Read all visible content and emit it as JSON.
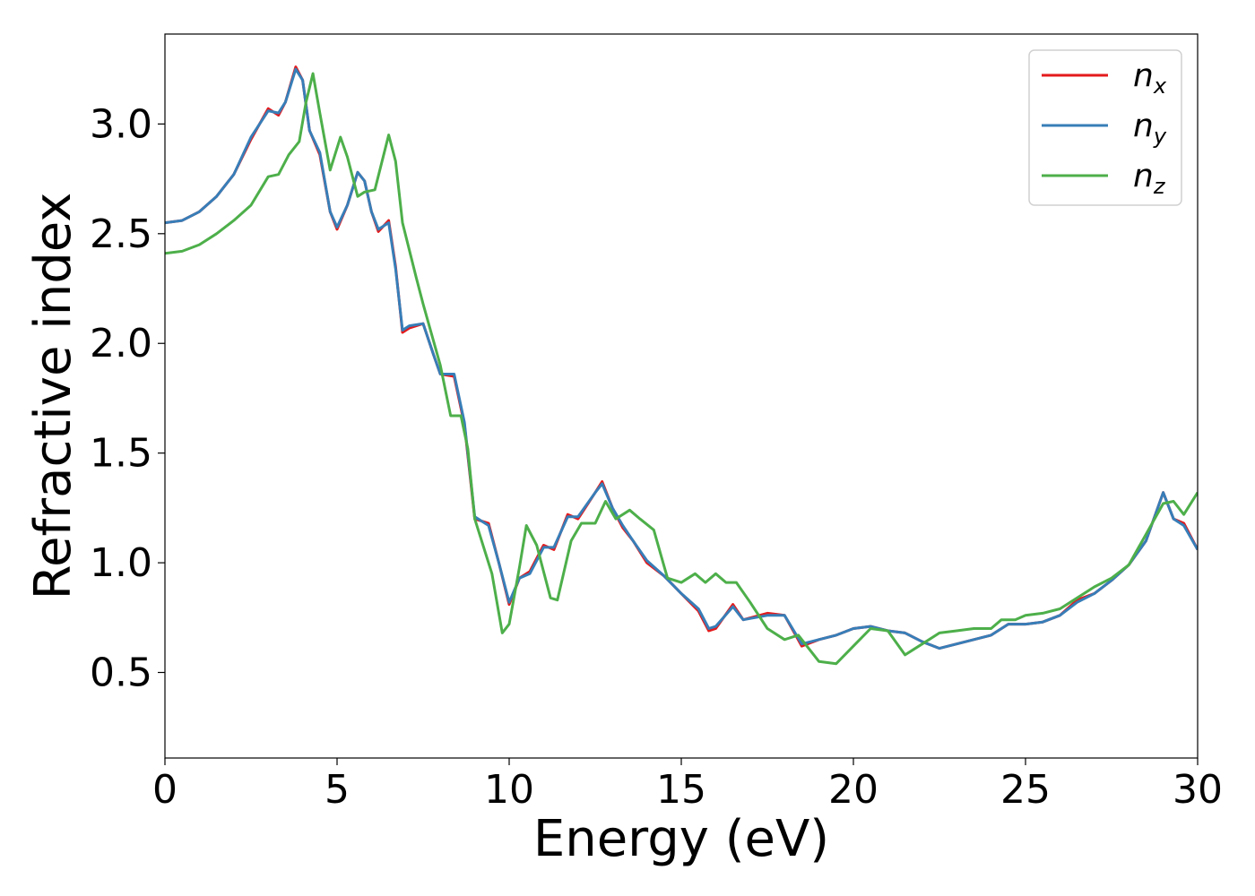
{
  "chart_data": {
    "type": "line",
    "title": "",
    "xlabel": "Energy (eV)",
    "ylabel": "Refractive index",
    "xlim": [
      0,
      30
    ],
    "ylim": [
      0.11,
      3.41
    ],
    "xticks": [
      0,
      5,
      10,
      15,
      20,
      25,
      30
    ],
    "xtick_labels": [
      "0",
      "5",
      "10",
      "15",
      "20",
      "25",
      "30"
    ],
    "yticks": [
      0.5,
      1.0,
      1.5,
      2.0,
      2.5,
      3.0
    ],
    "ytick_labels": [
      "0.5",
      "1.0",
      "1.5",
      "2.0",
      "2.5",
      "3.0"
    ],
    "grid": false,
    "legend_position": "top-right",
    "series": [
      {
        "name": "n",
        "sub": "x",
        "color": "#e41a1c",
        "points": [
          [
            0,
            2.55
          ],
          [
            0.5,
            2.56
          ],
          [
            1,
            2.6
          ],
          [
            1.5,
            2.67
          ],
          [
            2,
            2.77
          ],
          [
            2.5,
            2.93
          ],
          [
            3,
            3.07
          ],
          [
            3.3,
            3.04
          ],
          [
            3.5,
            3.1
          ],
          [
            3.8,
            3.26
          ],
          [
            4,
            3.2
          ],
          [
            4.2,
            2.97
          ],
          [
            4.5,
            2.86
          ],
          [
            4.8,
            2.6
          ],
          [
            5,
            2.52
          ],
          [
            5.3,
            2.63
          ],
          [
            5.6,
            2.78
          ],
          [
            5.8,
            2.74
          ],
          [
            6,
            2.6
          ],
          [
            6.2,
            2.51
          ],
          [
            6.5,
            2.56
          ],
          [
            6.7,
            2.35
          ],
          [
            6.9,
            2.05
          ],
          [
            7.1,
            2.07
          ],
          [
            7.5,
            2.09
          ],
          [
            7.8,
            1.95
          ],
          [
            8,
            1.86
          ],
          [
            8.4,
            1.85
          ],
          [
            8.7,
            1.63
          ],
          [
            9,
            1.2
          ],
          [
            9.2,
            1.19
          ],
          [
            9.4,
            1.18
          ],
          [
            9.7,
            1.0
          ],
          [
            10,
            0.81
          ],
          [
            10.3,
            0.93
          ],
          [
            10.6,
            0.96
          ],
          [
            11,
            1.08
          ],
          [
            11.3,
            1.06
          ],
          [
            11.7,
            1.22
          ],
          [
            12,
            1.2
          ],
          [
            12.5,
            1.32
          ],
          [
            12.7,
            1.37
          ],
          [
            13,
            1.25
          ],
          [
            13.3,
            1.16
          ],
          [
            13.6,
            1.1
          ],
          [
            14,
            1.0
          ],
          [
            14.5,
            0.94
          ],
          [
            15,
            0.86
          ],
          [
            15.5,
            0.78
          ],
          [
            15.8,
            0.69
          ],
          [
            16,
            0.7
          ],
          [
            16.5,
            0.81
          ],
          [
            16.8,
            0.74
          ],
          [
            17.5,
            0.77
          ],
          [
            18,
            0.76
          ],
          [
            18.5,
            0.62
          ],
          [
            19,
            0.65
          ],
          [
            19.5,
            0.67
          ],
          [
            20,
            0.7
          ],
          [
            20.5,
            0.71
          ],
          [
            21,
            0.69
          ],
          [
            21.5,
            0.68
          ],
          [
            22,
            0.64
          ],
          [
            22.5,
            0.61
          ],
          [
            23,
            0.63
          ],
          [
            23.5,
            0.65
          ],
          [
            24,
            0.67
          ],
          [
            24.5,
            0.72
          ],
          [
            25,
            0.72
          ],
          [
            25.5,
            0.73
          ],
          [
            26,
            0.76
          ],
          [
            26.5,
            0.83
          ],
          [
            27,
            0.86
          ],
          [
            27.5,
            0.92
          ],
          [
            28,
            0.99
          ],
          [
            28.5,
            1.1
          ],
          [
            29,
            1.32
          ],
          [
            29.3,
            1.2
          ],
          [
            29.6,
            1.18
          ],
          [
            30,
            1.06
          ]
        ]
      },
      {
        "name": "n",
        "sub": "y",
        "color": "#377eb8",
        "points": [
          [
            0,
            2.55
          ],
          [
            0.5,
            2.56
          ],
          [
            1,
            2.6
          ],
          [
            1.5,
            2.67
          ],
          [
            2,
            2.77
          ],
          [
            2.5,
            2.94
          ],
          [
            3,
            3.06
          ],
          [
            3.3,
            3.05
          ],
          [
            3.5,
            3.1
          ],
          [
            3.8,
            3.25
          ],
          [
            4,
            3.2
          ],
          [
            4.2,
            2.97
          ],
          [
            4.5,
            2.87
          ],
          [
            4.8,
            2.6
          ],
          [
            5,
            2.53
          ],
          [
            5.3,
            2.63
          ],
          [
            5.6,
            2.78
          ],
          [
            5.8,
            2.74
          ],
          [
            6,
            2.6
          ],
          [
            6.2,
            2.52
          ],
          [
            6.5,
            2.55
          ],
          [
            6.7,
            2.34
          ],
          [
            6.9,
            2.06
          ],
          [
            7.1,
            2.08
          ],
          [
            7.5,
            2.09
          ],
          [
            7.8,
            1.95
          ],
          [
            8,
            1.86
          ],
          [
            8.4,
            1.86
          ],
          [
            8.7,
            1.64
          ],
          [
            9,
            1.21
          ],
          [
            9.2,
            1.19
          ],
          [
            9.4,
            1.17
          ],
          [
            9.7,
            1.0
          ],
          [
            10,
            0.82
          ],
          [
            10.3,
            0.93
          ],
          [
            10.6,
            0.95
          ],
          [
            11,
            1.07
          ],
          [
            11.3,
            1.07
          ],
          [
            11.7,
            1.21
          ],
          [
            12,
            1.21
          ],
          [
            12.5,
            1.32
          ],
          [
            12.7,
            1.36
          ],
          [
            13,
            1.25
          ],
          [
            13.3,
            1.17
          ],
          [
            13.6,
            1.1
          ],
          [
            14,
            1.01
          ],
          [
            14.5,
            0.94
          ],
          [
            15,
            0.86
          ],
          [
            15.5,
            0.79
          ],
          [
            15.8,
            0.7
          ],
          [
            16,
            0.71
          ],
          [
            16.5,
            0.8
          ],
          [
            16.8,
            0.74
          ],
          [
            17.5,
            0.76
          ],
          [
            18,
            0.76
          ],
          [
            18.5,
            0.63
          ],
          [
            19,
            0.65
          ],
          [
            19.5,
            0.67
          ],
          [
            20,
            0.7
          ],
          [
            20.5,
            0.71
          ],
          [
            21,
            0.69
          ],
          [
            21.5,
            0.68
          ],
          [
            22,
            0.64
          ],
          [
            22.5,
            0.61
          ],
          [
            23,
            0.63
          ],
          [
            23.5,
            0.65
          ],
          [
            24,
            0.67
          ],
          [
            24.5,
            0.72
          ],
          [
            25,
            0.72
          ],
          [
            25.5,
            0.73
          ],
          [
            26,
            0.76
          ],
          [
            26.5,
            0.82
          ],
          [
            27,
            0.86
          ],
          [
            27.5,
            0.92
          ],
          [
            28,
            0.99
          ],
          [
            28.5,
            1.1
          ],
          [
            29,
            1.32
          ],
          [
            29.3,
            1.2
          ],
          [
            29.6,
            1.17
          ],
          [
            30,
            1.06
          ]
        ]
      },
      {
        "name": "n",
        "sub": "z",
        "color": "#4daf4a",
        "points": [
          [
            0,
            2.41
          ],
          [
            0.5,
            2.42
          ],
          [
            1,
            2.45
          ],
          [
            1.5,
            2.5
          ],
          [
            2,
            2.56
          ],
          [
            2.5,
            2.63
          ],
          [
            3,
            2.76
          ],
          [
            3.3,
            2.77
          ],
          [
            3.6,
            2.86
          ],
          [
            3.9,
            2.92
          ],
          [
            4.1,
            3.1
          ],
          [
            4.3,
            3.23
          ],
          [
            4.5,
            3.05
          ],
          [
            4.8,
            2.79
          ],
          [
            5.1,
            2.94
          ],
          [
            5.3,
            2.85
          ],
          [
            5.6,
            2.67
          ],
          [
            5.8,
            2.69
          ],
          [
            6.1,
            2.7
          ],
          [
            6.5,
            2.95
          ],
          [
            6.7,
            2.83
          ],
          [
            6.9,
            2.55
          ],
          [
            7.3,
            2.3
          ],
          [
            7.5,
            2.18
          ],
          [
            8,
            1.9
          ],
          [
            8.3,
            1.67
          ],
          [
            8.6,
            1.67
          ],
          [
            8.8,
            1.52
          ],
          [
            9,
            1.2
          ],
          [
            9.5,
            0.95
          ],
          [
            9.8,
            0.68
          ],
          [
            10,
            0.72
          ],
          [
            10.3,
            0.98
          ],
          [
            10.5,
            1.17
          ],
          [
            10.8,
            1.08
          ],
          [
            11.2,
            0.84
          ],
          [
            11.4,
            0.83
          ],
          [
            11.8,
            1.1
          ],
          [
            12.1,
            1.18
          ],
          [
            12.5,
            1.18
          ],
          [
            12.8,
            1.28
          ],
          [
            13.1,
            1.2
          ],
          [
            13.5,
            1.24
          ],
          [
            13.8,
            1.2
          ],
          [
            14.2,
            1.15
          ],
          [
            14.6,
            0.93
          ],
          [
            15,
            0.91
          ],
          [
            15.4,
            0.95
          ],
          [
            15.7,
            0.91
          ],
          [
            16,
            0.95
          ],
          [
            16.3,
            0.91
          ],
          [
            16.6,
            0.91
          ],
          [
            17,
            0.82
          ],
          [
            17.5,
            0.7
          ],
          [
            18,
            0.65
          ],
          [
            18.4,
            0.67
          ],
          [
            19,
            0.55
          ],
          [
            19.5,
            0.54
          ],
          [
            20,
            0.62
          ],
          [
            20.5,
            0.7
          ],
          [
            21,
            0.69
          ],
          [
            21.5,
            0.58
          ],
          [
            22,
            0.63
          ],
          [
            22.5,
            0.68
          ],
          [
            23,
            0.69
          ],
          [
            23.5,
            0.7
          ],
          [
            24,
            0.7
          ],
          [
            24.3,
            0.74
          ],
          [
            24.7,
            0.74
          ],
          [
            25,
            0.76
          ],
          [
            25.5,
            0.77
          ],
          [
            26,
            0.79
          ],
          [
            26.5,
            0.84
          ],
          [
            27,
            0.89
          ],
          [
            27.5,
            0.93
          ],
          [
            28,
            0.99
          ],
          [
            28.5,
            1.13
          ],
          [
            29,
            1.27
          ],
          [
            29.3,
            1.28
          ],
          [
            29.6,
            1.22
          ],
          [
            30,
            1.32
          ]
        ]
      }
    ]
  }
}
